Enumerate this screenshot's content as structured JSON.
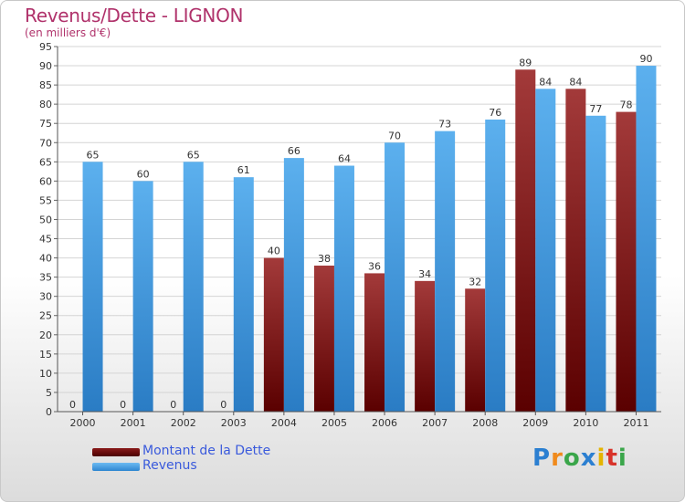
{
  "header": {
    "title": "Revenus/Dette - LIGNON",
    "subtitle": "(en milliers d'€)"
  },
  "colors": {
    "dette": "#7a1010",
    "revenus": "#4aa3e6",
    "title": "#b0326b",
    "legend_text": "#3a5adc"
  },
  "chart_data": {
    "type": "bar",
    "title": "Revenus/Dette - LIGNON",
    "ylabel": "(en milliers d'€)",
    "xlabel": "",
    "categories": [
      "2000",
      "2001",
      "2002",
      "2003",
      "2004",
      "2005",
      "2006",
      "2007",
      "2008",
      "2009",
      "2010",
      "2011"
    ],
    "series": [
      {
        "name": "Montant de la Dette",
        "values": [
          0,
          0,
          0,
          0,
          40,
          38,
          36,
          34,
          32,
          89,
          84,
          78
        ]
      },
      {
        "name": "Revenus",
        "values": [
          65,
          60,
          65,
          61,
          66,
          64,
          70,
          73,
          76,
          84,
          77,
          90
        ]
      }
    ],
    "ylim": [
      0,
      95
    ],
    "ytick_step": 5,
    "grid": true,
    "legend_placement": "bottom-left"
  },
  "legend": {
    "items": [
      {
        "label": "Montant de la Dette"
      },
      {
        "label": "Revenus"
      }
    ]
  },
  "logo": {
    "letters": [
      "P",
      "r",
      "o",
      "x",
      "i",
      "t",
      "i"
    ]
  }
}
